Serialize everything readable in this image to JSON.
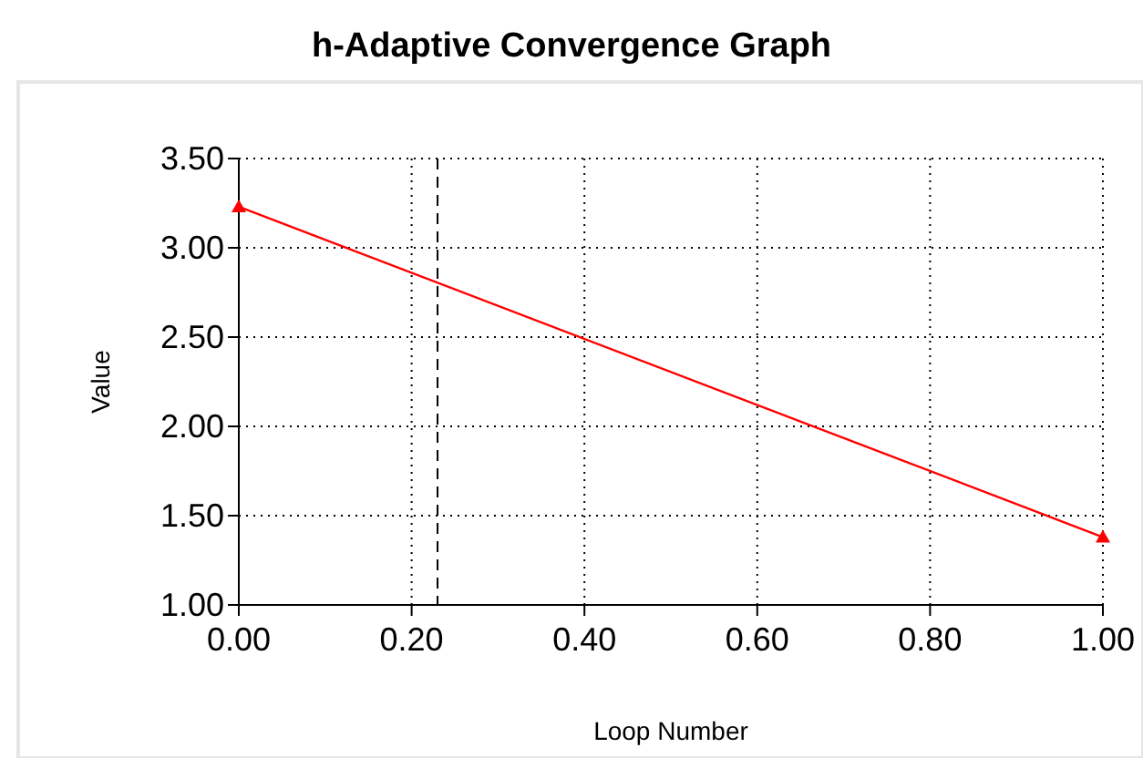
{
  "chart_data": {
    "type": "line",
    "title": "h-Adaptive Convergence Graph",
    "xlabel": "Loop Number",
    "ylabel": "Value",
    "x": [
      0,
      1
    ],
    "series": [
      {
        "color": "#ff0000",
        "values": [
          3.23,
          1.38
        ]
      }
    ],
    "xlim": [
      0,
      1
    ],
    "xticks": [
      {
        "value": 0,
        "label": "0.00"
      },
      {
        "value": 0.2,
        "label": "0.20"
      },
      {
        "value": 0.4,
        "label": "0.40"
      },
      {
        "value": 0.6,
        "label": "0.60"
      },
      {
        "value": 0.8,
        "label": "0.80"
      },
      {
        "value": 1,
        "label": "1.00"
      }
    ],
    "ylim": [
      1,
      3.5
    ],
    "yticks": [
      {
        "value": 1,
        "label": "1.00"
      },
      {
        "value": 1.5,
        "label": "1.50"
      },
      {
        "value": 2,
        "label": "2.00"
      },
      {
        "value": 2.5,
        "label": "2.50"
      },
      {
        "value": 3,
        "label": "3.00"
      },
      {
        "value": 3.5,
        "label": "3.50"
      }
    ],
    "grid": true,
    "marker": "triangle",
    "line_style": "solid",
    "ref_lines": [
      {
        "axis": "x",
        "value": 0.23,
        "label": null,
        "color": "#000000",
        "line_style": "dashed"
      }
    ]
  }
}
